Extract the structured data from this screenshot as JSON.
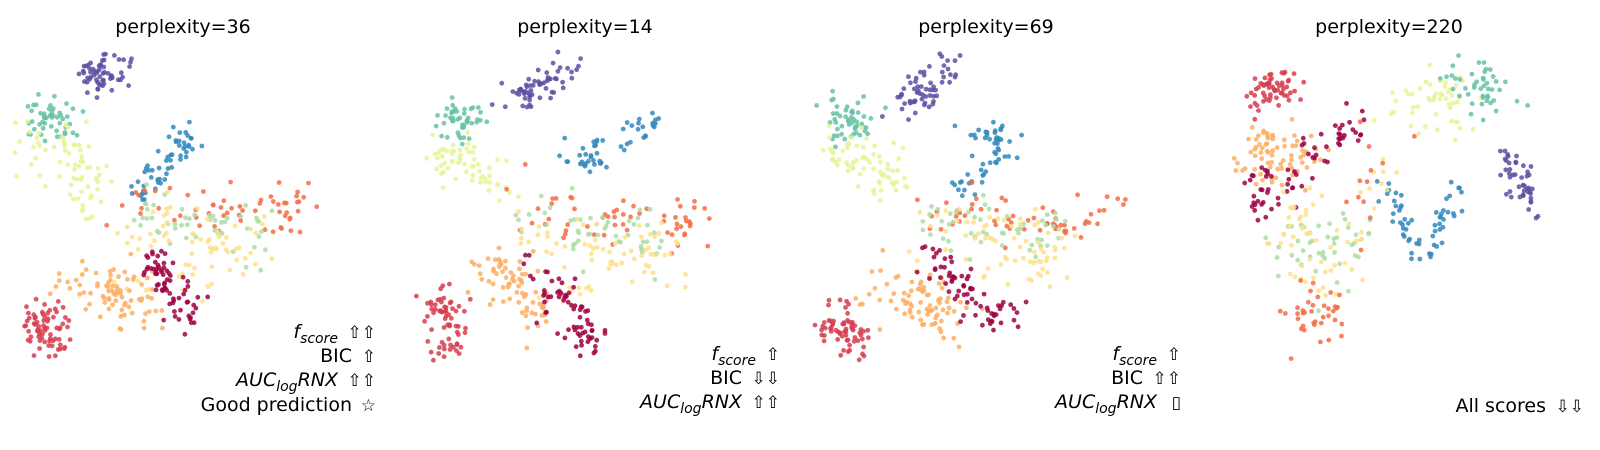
{
  "colors": {
    "c_red": "#d53e4f",
    "c_crimson": "#9e0142",
    "c_orange": "#f46d43",
    "c_lightorange": "#fdae61",
    "c_cream": "#fee08b",
    "c_paleyellow": "#e6f598",
    "c_lightgreen": "#abdda4",
    "c_teal": "#66c2a5",
    "c_blue": "#3288bd",
    "c_purple": "#5e4fa2"
  },
  "chart_data": [
    {
      "type": "scatter",
      "title": "perplexity=36",
      "annotations": [
        {
          "label": "f",
          "sub": "score",
          "italic": true,
          "symbol": "⇧⇧"
        },
        {
          "label": "BIC",
          "sub": "",
          "italic": false,
          "symbol": "⇧"
        },
        {
          "label": "AUC",
          "sub": "log",
          "tail": "RNX",
          "italic": true,
          "symbol": "⇧⇧"
        },
        {
          "label": "Good prediction",
          "sub": "",
          "italic": false,
          "symbol": "☆"
        }
      ],
      "clusters": [
        {
          "color": "c_purple",
          "n": 60,
          "pts": [
            [
              0.21,
              0.09
            ],
            [
              0.31,
              0.05
            ]
          ],
          "spread": 0.035
        },
        {
          "color": "c_teal",
          "n": 50,
          "pts": [
            [
              0.06,
              0.21
            ],
            [
              0.14,
              0.19
            ]
          ],
          "spread": 0.04
        },
        {
          "color": "c_paleyellow",
          "n": 70,
          "pts": [
            [
              0.05,
              0.31
            ],
            [
              0.18,
              0.27
            ],
            [
              0.24,
              0.45
            ]
          ],
          "spread": 0.045
        },
        {
          "color": "c_blue",
          "n": 55,
          "pts": [
            [
              0.47,
              0.24
            ],
            [
              0.53,
              0.27
            ],
            [
              0.43,
              0.36
            ],
            [
              0.38,
              0.43
            ]
          ],
          "spread": 0.022
        },
        {
          "color": "c_orange",
          "n": 60,
          "pts": [
            [
              0.33,
              0.48
            ],
            [
              0.55,
              0.48
            ],
            [
              0.75,
              0.49
            ],
            [
              0.88,
              0.45
            ]
          ],
          "spread": 0.04
        },
        {
          "color": "c_lightgreen",
          "n": 50,
          "pts": [
            [
              0.35,
              0.49
            ],
            [
              0.58,
              0.5
            ],
            [
              0.72,
              0.54
            ]
          ],
          "spread": 0.045
        },
        {
          "color": "c_cream",
          "n": 70,
          "pts": [
            [
              0.32,
              0.52
            ],
            [
              0.55,
              0.53
            ],
            [
              0.72,
              0.6
            ],
            [
              0.3,
              0.7
            ]
          ],
          "spread": 0.05
        },
        {
          "color": "c_lightorange",
          "n": 80,
          "pts": [
            [
              0.18,
              0.67
            ],
            [
              0.28,
              0.7
            ],
            [
              0.35,
              0.78
            ]
          ],
          "spread": 0.05
        },
        {
          "color": "c_crimson",
          "n": 70,
          "pts": [
            [
              0.4,
              0.62
            ],
            [
              0.46,
              0.7
            ],
            [
              0.52,
              0.8
            ]
          ],
          "spread": 0.035
        },
        {
          "color": "c_red",
          "n": 70,
          "pts": [
            [
              0.05,
              0.77
            ],
            [
              0.1,
              0.82
            ],
            [
              0.1,
              0.86
            ]
          ],
          "spread": 0.035
        }
      ]
    },
    {
      "type": "scatter",
      "title": "perplexity=14",
      "annotations": [
        {
          "label": "f",
          "sub": "score",
          "italic": true,
          "symbol": "⇧"
        },
        {
          "label": "BIC",
          "sub": "",
          "italic": false,
          "symbol": "⇩⇩"
        },
        {
          "label": "AUC",
          "sub": "log",
          "tail": "RNX",
          "italic": true,
          "symbol": "⇧⇧"
        }
      ],
      "clusters": [
        {
          "color": "c_purple",
          "n": 60,
          "pts": [
            [
              0.28,
              0.15
            ],
            [
              0.38,
              0.1
            ],
            [
              0.45,
              0.05
            ]
          ],
          "spread": 0.03
        },
        {
          "color": "c_teal",
          "n": 45,
          "pts": [
            [
              0.09,
              0.2
            ],
            [
              0.17,
              0.21
            ]
          ],
          "spread": 0.035
        },
        {
          "color": "c_paleyellow",
          "n": 60,
          "pts": [
            [
              0.08,
              0.31
            ],
            [
              0.16,
              0.33
            ],
            [
              0.28,
              0.42
            ]
          ],
          "spread": 0.04
        },
        {
          "color": "c_blue",
          "n": 50,
          "pts": [
            [
              0.62,
              0.21
            ],
            [
              0.71,
              0.21
            ],
            [
              0.47,
              0.32
            ],
            [
              0.57,
              0.33
            ]
          ],
          "spread": 0.025
        },
        {
          "color": "c_orange",
          "n": 60,
          "pts": [
            [
              0.35,
              0.47
            ],
            [
              0.55,
              0.49
            ],
            [
              0.76,
              0.51
            ],
            [
              0.85,
              0.54
            ]
          ],
          "spread": 0.04
        },
        {
          "color": "c_lightgreen",
          "n": 50,
          "pts": [
            [
              0.33,
              0.5
            ],
            [
              0.55,
              0.52
            ],
            [
              0.72,
              0.56
            ]
          ],
          "spread": 0.045
        },
        {
          "color": "c_cream",
          "n": 70,
          "pts": [
            [
              0.32,
              0.56
            ],
            [
              0.56,
              0.58
            ],
            [
              0.8,
              0.6
            ],
            [
              0.42,
              0.7
            ]
          ],
          "spread": 0.05
        },
        {
          "color": "c_lightorange",
          "n": 70,
          "pts": [
            [
              0.23,
              0.63
            ],
            [
              0.3,
              0.68
            ],
            [
              0.36,
              0.78
            ]
          ],
          "spread": 0.045
        },
        {
          "color": "c_crimson",
          "n": 70,
          "pts": [
            [
              0.35,
              0.61
            ],
            [
              0.5,
              0.83
            ],
            [
              0.55,
              0.87
            ]
          ],
          "spread": 0.035
        },
        {
          "color": "c_red",
          "n": 65,
          "pts": [
            [
              0.06,
              0.74
            ],
            [
              0.1,
              0.8
            ],
            [
              0.08,
              0.88
            ]
          ],
          "spread": 0.035
        }
      ]
    },
    {
      "type": "scatter",
      "title": "perplexity=69",
      "annotations": [
        {
          "label": "f",
          "sub": "score",
          "italic": true,
          "symbol": "⇧"
        },
        {
          "label": "BIC",
          "sub": "",
          "italic": false,
          "symbol": "⇧⇧"
        },
        {
          "label": "AUC",
          "sub": "log",
          "tail": "RNX",
          "italic": true,
          "symbol": "▯"
        }
      ],
      "clusters": [
        {
          "color": "c_purple",
          "n": 60,
          "pts": [
            [
              0.27,
              0.15
            ],
            [
              0.34,
              0.1
            ],
            [
              0.4,
              0.04
            ]
          ],
          "spread": 0.03
        },
        {
          "color": "c_teal",
          "n": 50,
          "pts": [
            [
              0.06,
              0.2
            ],
            [
              0.15,
              0.21
            ]
          ],
          "spread": 0.035
        },
        {
          "color": "c_paleyellow",
          "n": 65,
          "pts": [
            [
              0.06,
              0.3
            ],
            [
              0.16,
              0.33
            ],
            [
              0.23,
              0.42
            ]
          ],
          "spread": 0.04
        },
        {
          "color": "c_blue",
          "n": 55,
          "pts": [
            [
              0.46,
              0.22
            ],
            [
              0.58,
              0.28
            ],
            [
              0.52,
              0.36
            ],
            [
              0.42,
              0.42
            ]
          ],
          "spread": 0.025
        },
        {
          "color": "c_orange",
          "n": 60,
          "pts": [
            [
              0.3,
              0.48
            ],
            [
              0.55,
              0.49
            ],
            [
              0.75,
              0.52
            ],
            [
              0.88,
              0.48
            ]
          ],
          "spread": 0.04
        },
        {
          "color": "c_lightgreen",
          "n": 50,
          "pts": [
            [
              0.33,
              0.5
            ],
            [
              0.55,
              0.52
            ],
            [
              0.72,
              0.56
            ]
          ],
          "spread": 0.045
        },
        {
          "color": "c_cream",
          "n": 70,
          "pts": [
            [
              0.35,
              0.52
            ],
            [
              0.6,
              0.56
            ],
            [
              0.74,
              0.62
            ],
            [
              0.35,
              0.66
            ]
          ],
          "spread": 0.05
        },
        {
          "color": "c_lightorange",
          "n": 80,
          "pts": [
            [
              0.2,
              0.7
            ],
            [
              0.33,
              0.74
            ],
            [
              0.38,
              0.8
            ]
          ],
          "spread": 0.05
        },
        {
          "color": "c_crimson",
          "n": 70,
          "pts": [
            [
              0.35,
              0.58
            ],
            [
              0.42,
              0.68
            ],
            [
              0.48,
              0.78
            ],
            [
              0.58,
              0.8
            ]
          ],
          "spread": 0.035
        },
        {
          "color": "c_red",
          "n": 65,
          "pts": [
            [
              0.05,
              0.78
            ],
            [
              0.09,
              0.83
            ],
            [
              0.12,
              0.86
            ]
          ],
          "spread": 0.035
        }
      ]
    },
    {
      "type": "scatter",
      "title": "perplexity=220",
      "annotations": [
        {
          "label": "All scores",
          "sub": "",
          "italic": false,
          "symbol": "⇩⇩"
        }
      ],
      "clusters": [
        {
          "color": "c_red",
          "n": 60,
          "pts": [
            [
              0.12,
              0.1
            ],
            [
              0.2,
              0.1
            ],
            [
              0.08,
              0.14
            ]
          ],
          "spread": 0.03
        },
        {
          "color": "c_lightorange",
          "n": 75,
          "pts": [
            [
              0.08,
              0.28
            ],
            [
              0.17,
              0.3
            ],
            [
              0.25,
              0.36
            ]
          ],
          "spread": 0.05
        },
        {
          "color": "c_paleyellow",
          "n": 50,
          "pts": [
            [
              0.55,
              0.15
            ],
            [
              0.66,
              0.1
            ],
            [
              0.72,
              0.2
            ]
          ],
          "spread": 0.05
        },
        {
          "color": "c_teal",
          "n": 45,
          "pts": [
            [
              0.69,
              0.08
            ],
            [
              0.78,
              0.1
            ],
            [
              0.8,
              0.16
            ]
          ],
          "spread": 0.035
        },
        {
          "color": "c_purple",
          "n": 45,
          "pts": [
            [
              0.84,
              0.3
            ],
            [
              0.88,
              0.38
            ],
            [
              0.93,
              0.46
            ]
          ],
          "spread": 0.025
        },
        {
          "color": "c_blue",
          "n": 60,
          "pts": [
            [
              0.48,
              0.38
            ],
            [
              0.54,
              0.5
            ],
            [
              0.6,
              0.61
            ],
            [
              0.66,
              0.5
            ],
            [
              0.69,
              0.38
            ]
          ],
          "spread": 0.018
        },
        {
          "color": "c_crimson",
          "n": 70,
          "pts": [
            [
              0.13,
              0.35
            ],
            [
              0.13,
              0.46
            ],
            [
              0.28,
              0.3
            ],
            [
              0.42,
              0.2
            ]
          ],
          "spread": 0.03
        },
        {
          "color": "c_lightgreen",
          "n": 45,
          "pts": [
            [
              0.2,
              0.55
            ],
            [
              0.3,
              0.62
            ],
            [
              0.45,
              0.48
            ]
          ],
          "spread": 0.05
        },
        {
          "color": "c_cream",
          "n": 60,
          "pts": [
            [
              0.25,
              0.42
            ],
            [
              0.22,
              0.56
            ],
            [
              0.32,
              0.7
            ],
            [
              0.48,
              0.3
            ]
          ],
          "spread": 0.05
        },
        {
          "color": "c_orange",
          "n": 50,
          "pts": [
            [
              0.22,
              0.73
            ],
            [
              0.27,
              0.8
            ],
            [
              0.33,
              0.78
            ],
            [
              0.5,
              0.24
            ]
          ],
          "spread": 0.04
        }
      ]
    }
  ]
}
